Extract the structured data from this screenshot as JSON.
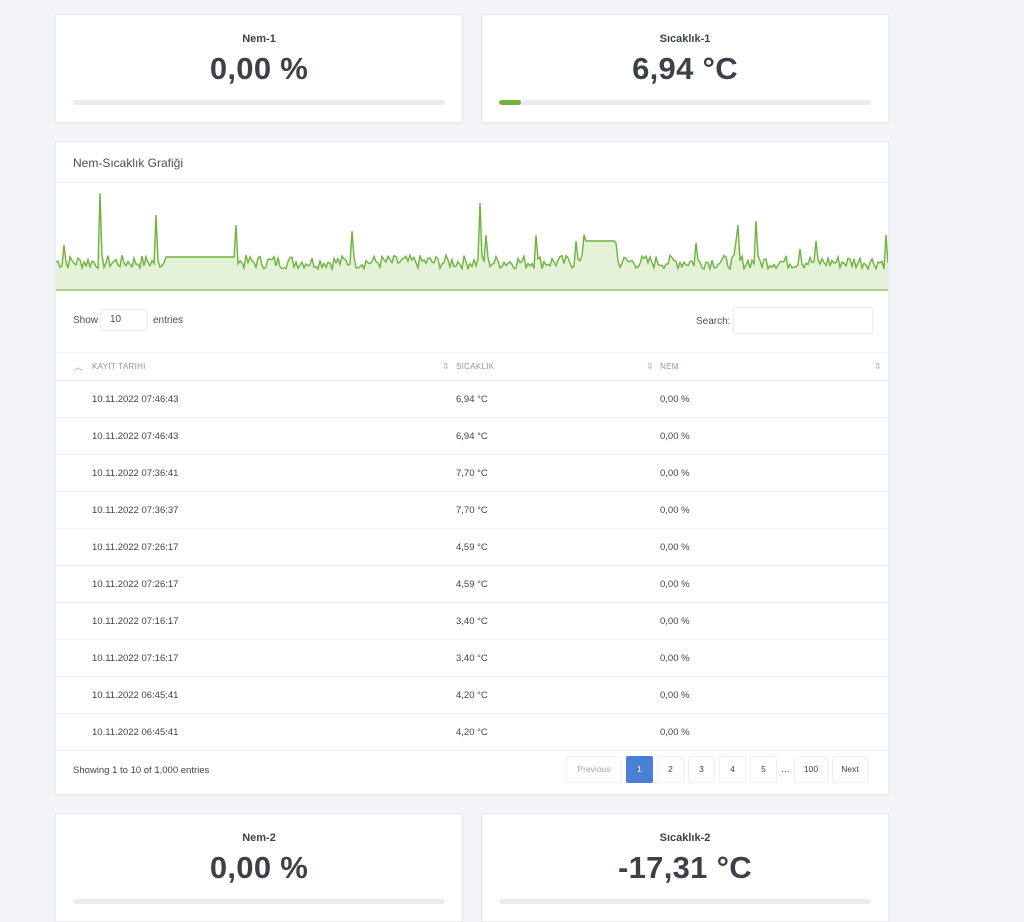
{
  "metrics_top": [
    {
      "label": "Nem-1",
      "value": "0,00 %",
      "level": 0.0
    },
    {
      "label": "Sıcaklık-1",
      "value": "6,94 °C",
      "level": 0.06
    }
  ],
  "chart": {
    "title": "Nem-Sıcaklık Grafiği",
    "line_color": "#6fb23f",
    "fill_color": "#e4f2d7"
  },
  "table": {
    "show_label": "Show",
    "page_size": "10",
    "entries_label": "entries",
    "search_label": "Search:",
    "search_value": "",
    "columns": [
      "KAYIT TARIHI",
      "SICAKLIK",
      "NEM"
    ],
    "rows": [
      [
        "10.11.2022 07:46:43",
        "6,94 °C",
        "0,00 %"
      ],
      [
        "10.11.2022 07:46:43",
        "6,94 °C",
        "0,00 %"
      ],
      [
        "10.11.2022 07:36:41",
        "7,70 °C",
        "0,00 %"
      ],
      [
        "10.11.2022 07:36:37",
        "7,70 °C",
        "0,00 %"
      ],
      [
        "10.11.2022 07:26:17",
        "4,59 °C",
        "0,00 %"
      ],
      [
        "10.11.2022 07:26:17",
        "4,59 °C",
        "0,00 %"
      ],
      [
        "10.11.2022 07:16:17",
        "3,40 °C",
        "0,00 %"
      ],
      [
        "10.11.2022 07:16:17",
        "3,40 °C",
        "0,00 %"
      ],
      [
        "10.11.2022 06:45:41",
        "4,20 °C",
        "0,00 %"
      ],
      [
        "10.11.2022 06:45:41",
        "4,20 °C",
        "0,00 %"
      ]
    ],
    "info": "Showing 1 to 10 of 1,000 entries",
    "pagination": {
      "previous": "Previous",
      "pages": [
        "1",
        "2",
        "3",
        "4",
        "5"
      ],
      "ellipsis": "…",
      "last": "100",
      "next": "Next",
      "active": "1"
    }
  },
  "metrics_bottom": [
    {
      "label": "Nem-2",
      "value": "0,00 %",
      "level": 0.0
    },
    {
      "label": "Sıcaklık-2",
      "value": "-17,31 °C",
      "level": 0.0
    }
  ],
  "accent_color": "#4a7fd4"
}
